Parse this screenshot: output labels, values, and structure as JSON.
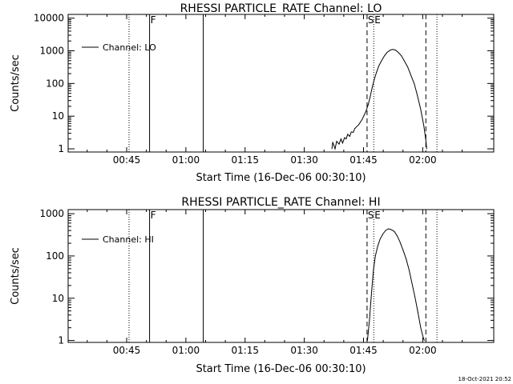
{
  "footer": {
    "timestamp": "18-Oct-2021 20:52"
  },
  "chart_data": [
    {
      "type": "line",
      "title": "RHESSI PARTICLE_RATE Channel: LO",
      "xlabel": "Start Time (16-Dec-06 00:30:10)",
      "ylabel": "Counts/sec",
      "yscale": "log",
      "xlim": [
        30.17,
        138.0
      ],
      "ylim": [
        0.8,
        13000
      ],
      "xticks": [
        {
          "v": 45,
          "label": "00:45"
        },
        {
          "v": 60,
          "label": "01:00"
        },
        {
          "v": 75,
          "label": "01:15"
        },
        {
          "v": 90,
          "label": "01:30"
        },
        {
          "v": 105,
          "label": "01:45"
        },
        {
          "v": 120,
          "label": "02:00"
        }
      ],
      "yticks": [
        {
          "v": 1,
          "label": "1"
        },
        {
          "v": 10,
          "label": "10"
        },
        {
          "v": 100,
          "label": "100"
        },
        {
          "v": 1000,
          "label": "1000"
        },
        {
          "v": 10000,
          "label": "10000"
        }
      ],
      "legend": {
        "label": "Channel: LO",
        "placement": "top-left"
      },
      "markers": [
        {
          "x": 45.6,
          "style": "dotted",
          "label": ""
        },
        {
          "x": 50.8,
          "style": "solid",
          "label": "F"
        },
        {
          "x": 64.4,
          "style": "solid",
          "label": ""
        },
        {
          "x": 105.9,
          "style": "dashed",
          "label": "S"
        },
        {
          "x": 107.6,
          "style": "dotted",
          "label": "E"
        },
        {
          "x": 120.8,
          "style": "dashed",
          "label": ""
        },
        {
          "x": 123.6,
          "style": "dotted",
          "label": ""
        }
      ],
      "series": [
        {
          "name": "Channel: LO",
          "x": [
            97.0,
            97.2,
            97.8,
            98.2,
            98.8,
            99.3,
            99.7,
            100.2,
            100.6,
            101.0,
            101.5,
            101.9,
            102.4,
            102.8,
            103.3,
            103.8,
            104.2,
            104.7,
            105.1,
            105.6,
            106.2,
            106.7,
            107.2,
            107.7,
            108.3,
            108.9,
            109.6,
            110.3,
            111.0,
            111.8,
            112.4,
            113.1,
            113.8,
            114.6,
            115.3,
            116.2,
            117.0,
            117.9,
            118.6,
            119.5,
            120.3,
            120.8,
            121.0
          ],
          "y": [
            1.0,
            1.6,
            1.0,
            1.7,
            1.4,
            2.0,
            1.5,
            2.2,
            2.0,
            2.8,
            2.4,
            3.3,
            3.2,
            4.2,
            4.8,
            5.5,
            6.6,
            8.1,
            10.4,
            13.7,
            22.6,
            40,
            75,
            130,
            220,
            350,
            500,
            700,
            900,
            1050,
            1100,
            1050,
            900,
            700,
            500,
            320,
            180,
            95,
            45,
            16,
            5.0,
            1.8,
            1.0
          ]
        }
      ]
    },
    {
      "type": "line",
      "title": "RHESSI PARTICLE_RATE Channel: HI",
      "xlabel": "Start Time (16-Dec-06 00:30:10)",
      "ylabel": "Counts/sec",
      "yscale": "log",
      "xlim": [
        30.17,
        138.0
      ],
      "ylim": [
        0.9,
        1250
      ],
      "xticks": [
        {
          "v": 45,
          "label": "00:45"
        },
        {
          "v": 60,
          "label": "01:00"
        },
        {
          "v": 75,
          "label": "01:15"
        },
        {
          "v": 90,
          "label": "01:30"
        },
        {
          "v": 105,
          "label": "01:45"
        },
        {
          "v": 120,
          "label": "02:00"
        }
      ],
      "yticks": [
        {
          "v": 1,
          "label": "1"
        },
        {
          "v": 10,
          "label": "10"
        },
        {
          "v": 100,
          "label": "100"
        },
        {
          "v": 1000,
          "label": "1000"
        }
      ],
      "legend": {
        "label": "Channel: HI",
        "placement": "top-left"
      },
      "markers": [
        {
          "x": 45.6,
          "style": "dotted",
          "label": ""
        },
        {
          "x": 50.8,
          "style": "solid",
          "label": "F"
        },
        {
          "x": 64.4,
          "style": "solid",
          "label": ""
        },
        {
          "x": 105.9,
          "style": "dashed",
          "label": "S"
        },
        {
          "x": 107.6,
          "style": "dotted",
          "label": "E"
        },
        {
          "x": 120.8,
          "style": "dashed",
          "label": ""
        },
        {
          "x": 123.6,
          "style": "dotted",
          "label": ""
        }
      ],
      "series": [
        {
          "name": "Channel: HI",
          "x": [
            106.0,
            106.5,
            107.0,
            107.5,
            108.0,
            108.6,
            109.2,
            109.9,
            110.6,
            111.3,
            112.0,
            112.8,
            113.5,
            114.2,
            115.0,
            115.8,
            116.6,
            117.3,
            118.1,
            118.8,
            119.5,
            120.0,
            120.4
          ],
          "y": [
            1.0,
            3.0,
            12,
            45,
            100,
            170,
            250,
            330,
            400,
            440,
            420,
            380,
            300,
            220,
            140,
            85,
            45,
            22,
            10,
            4.5,
            2.0,
            1.3,
            1.0
          ]
        }
      ]
    }
  ]
}
